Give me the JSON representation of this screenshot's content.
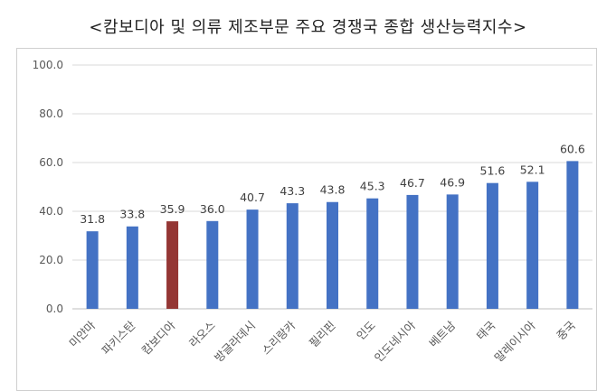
{
  "chart_data": {
    "type": "bar",
    "title": "<캄보디아 및 의류 제조부문 주요 경쟁국 종합 생산능력지수>",
    "categories": [
      "미얀마",
      "파키스탄",
      "캄보디아",
      "라오스",
      "방글라데시",
      "스리랑카",
      "필리핀",
      "인도",
      "인도네시아",
      "베트남",
      "태국",
      "말레이시아",
      "중국"
    ],
    "values": [
      31.8,
      33.8,
      35.9,
      36.0,
      40.7,
      43.3,
      43.8,
      45.3,
      46.7,
      46.9,
      51.6,
      52.1,
      60.6
    ],
    "value_labels": [
      "31.8",
      "33.8",
      "35.9",
      "36.0",
      "40.7",
      "43.3",
      "43.8",
      "45.3",
      "46.7",
      "46.9",
      "51.6",
      "52.1",
      "60.6"
    ],
    "ylim": [
      0,
      100
    ],
    "yticks": [
      "0.0",
      "20.0",
      "40.0",
      "60.0",
      "80.0",
      "100.0"
    ],
    "grid": true,
    "colors": {
      "default": "#4472c4",
      "highlight": "#943634"
    },
    "highlight_category": "캄보디아"
  }
}
